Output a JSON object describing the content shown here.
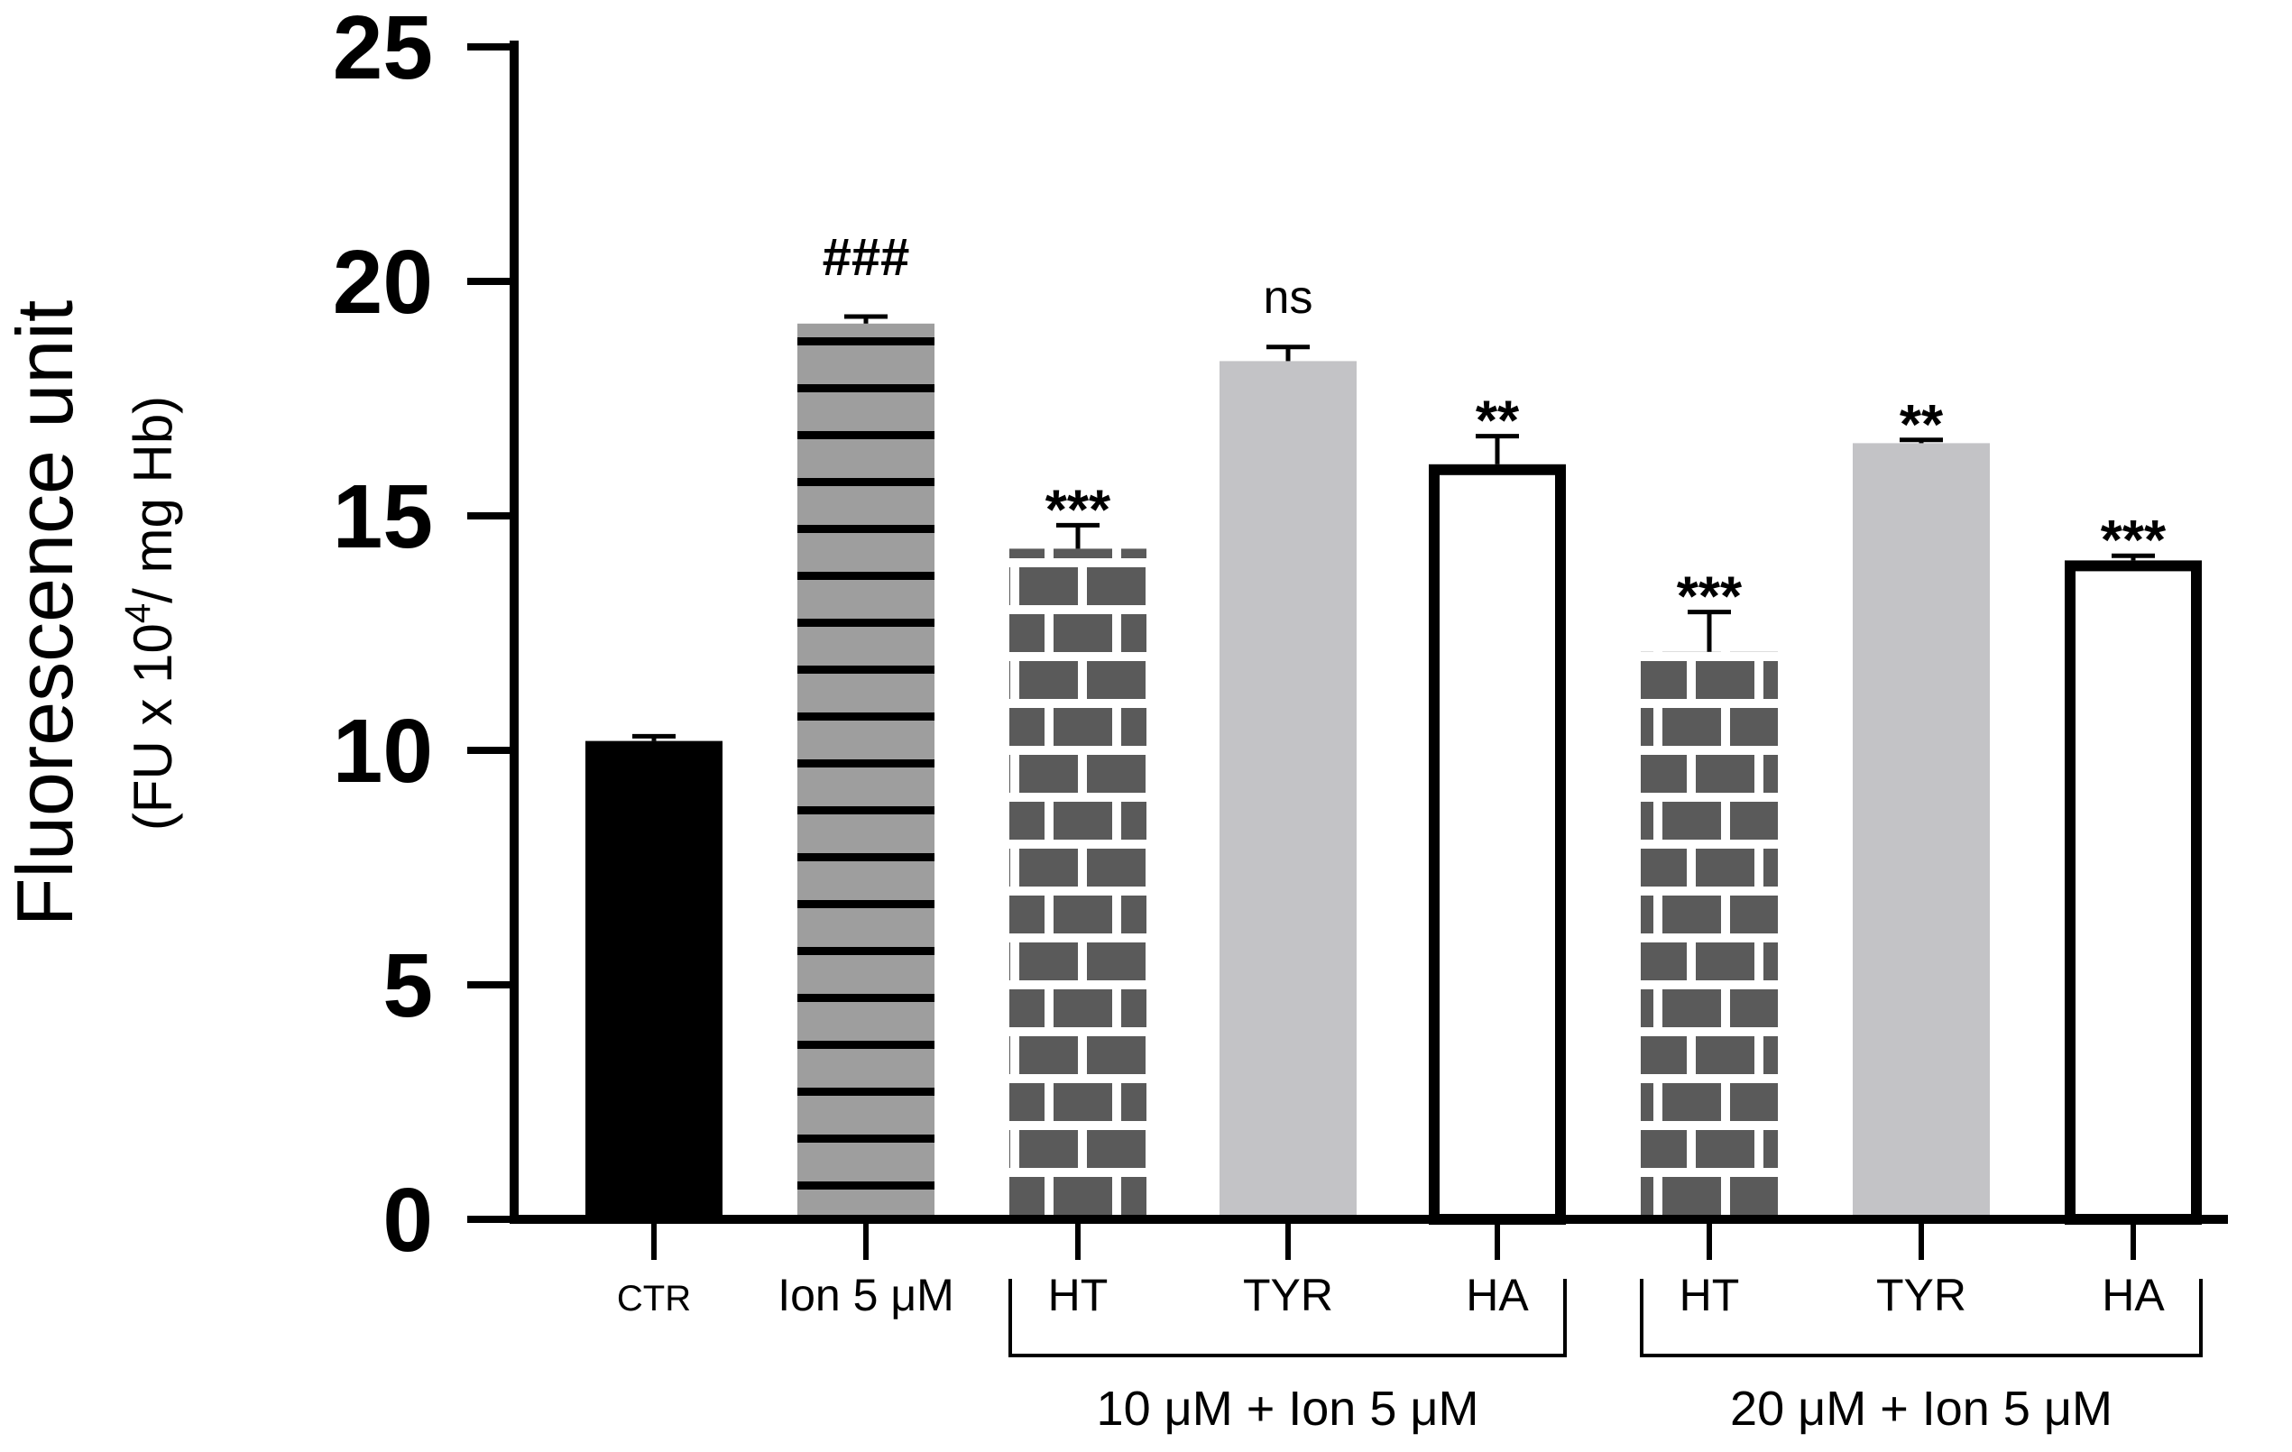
{
  "chart_data": {
    "type": "bar",
    "title": "",
    "xlabel": "",
    "ylabel": "Fluorescence unit",
    "ylabel_sub": "(FU x 10",
    "ylabel_sub_sup": "4",
    "ylabel_sub_tail": "/ mg Hb)",
    "ylim": [
      0,
      25
    ],
    "yticks": [
      0,
      5,
      10,
      15,
      20,
      25
    ],
    "yticklabels": [
      "0",
      "5",
      "10",
      "15",
      "20",
      "25"
    ],
    "grid": false,
    "categories": [
      "CTR",
      "Ion 5 μM",
      "HT",
      "TYR",
      "HA",
      "HT",
      "TYR",
      "HA"
    ],
    "values": [
      10.2,
      19.1,
      14.3,
      18.3,
      16.1,
      12.1,
      16.55,
      14.05
    ],
    "errors": [
      0.1,
      0.15,
      0.5,
      0.3,
      0.6,
      0.85,
      0.07,
      0.1
    ],
    "significance": [
      "",
      "###",
      "***",
      "ns",
      "**",
      "***",
      "**",
      "***"
    ],
    "fill_styles": [
      "solid-black",
      "gray-horizontal-stripes",
      "brick",
      "light-gray",
      "white-outline",
      "brick",
      "light-gray",
      "white-outline"
    ],
    "groups": [
      {
        "label": "10 μM + Ion 5 μM",
        "members": [
          2,
          3,
          4
        ]
      },
      {
        "label": "20 μM + Ion 5 μM",
        "members": [
          5,
          6,
          7
        ]
      }
    ],
    "colors": {
      "solid": "#000000",
      "stripe_bg": "#9e9e9e",
      "brick": "#5a5a5a",
      "light_gray": "#c3c3c6",
      "outline": "#000000"
    }
  }
}
